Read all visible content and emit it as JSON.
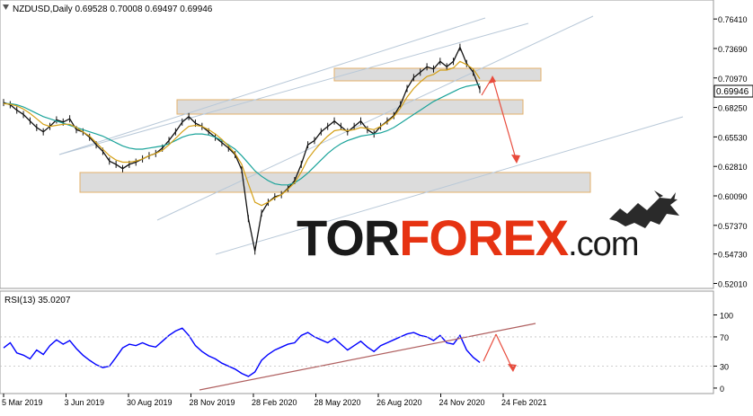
{
  "header": {
    "symbol_line": "NZDUSD,Daily  0.69528 0.70008 0.69497 0.69946",
    "rsi_line": "RSI(13) 35.0207",
    "current_price": "0.69946"
  },
  "logo": {
    "part1": "TOR",
    "part2": "FOREX",
    "part3": ".com",
    "colors": {
      "tor": "#1a1a1a",
      "forex": "#e63312",
      "com": "#1a1a1a"
    }
  },
  "colors": {
    "price": "#111111",
    "ma_slow": "#1aa39a",
    "ma_fast": "#d4a017",
    "channel": "#b8c8d8",
    "zone_fill": "#d9d9d9",
    "zone_border": "#e0a85a",
    "forecast": "#e84c3d",
    "rsi": "#0000ff",
    "rsi_trend": "#b06060",
    "price_tag_bg": "#ffffff"
  },
  "chart_data": [
    {
      "type": "line",
      "title": "NZDUSD,Daily",
      "y_ticks": [
        0.7641,
        0.7369,
        0.7097,
        0.6825,
        0.6553,
        0.6281,
        0.6009,
        0.5737,
        0.5473,
        0.5201
      ],
      "y_tick_labels": [
        "0.76410",
        "0.73690",
        "0.70970",
        "0.68250",
        "0.65530",
        "0.62810",
        "0.60090",
        "0.57370",
        "0.54730",
        "0.52010"
      ],
      "ylim": [
        0.518,
        0.775
      ],
      "x_labels": [
        "5 Mar 2019",
        "3 Jun 2019",
        "30 Aug 2019",
        "28 Nov 2019",
        "28 Feb 2020",
        "28 May 2020",
        "26 Aug 2020",
        "24 Nov 2020",
        "24 Feb 2021"
      ],
      "series": [
        {
          "values": [
            0.687,
            0.685,
            0.68,
            0.676,
            0.67,
            0.664,
            0.66,
            0.665,
            0.671,
            0.669,
            0.672,
            0.662,
            0.66,
            0.655,
            0.648,
            0.642,
            0.633,
            0.63,
            0.626,
            0.63,
            0.632,
            0.635,
            0.638,
            0.64,
            0.645,
            0.652,
            0.66,
            0.669,
            0.674,
            0.668,
            0.665,
            0.66,
            0.655,
            0.65,
            0.645,
            0.639,
            0.625,
            0.58,
            0.55,
            0.585,
            0.595,
            0.6,
            0.602,
            0.608,
            0.615,
            0.63,
            0.648,
            0.652,
            0.66,
            0.665,
            0.67,
            0.665,
            0.66,
            0.665,
            0.67,
            0.662,
            0.658,
            0.665,
            0.67,
            0.675,
            0.685,
            0.7,
            0.71,
            0.715,
            0.72,
            0.718,
            0.725,
            0.72,
            0.725,
            0.738,
            0.723,
            0.715,
            0.699
          ]
        },
        {
          "values": [
            0.686,
            0.686,
            0.685,
            0.683,
            0.68,
            0.677,
            0.674,
            0.672,
            0.67,
            0.668,
            0.666,
            0.664,
            0.662,
            0.66,
            0.658,
            0.656,
            0.653,
            0.65,
            0.647,
            0.645,
            0.644,
            0.644,
            0.645,
            0.646,
            0.647,
            0.649,
            0.652,
            0.655,
            0.657,
            0.658,
            0.658,
            0.657,
            0.655,
            0.652,
            0.648,
            0.644,
            0.638,
            0.631,
            0.624,
            0.619,
            0.615,
            0.612,
            0.611,
            0.611,
            0.613,
            0.617,
            0.622,
            0.628,
            0.634,
            0.64,
            0.645,
            0.649,
            0.652,
            0.654,
            0.656,
            0.657,
            0.658,
            0.659,
            0.661,
            0.664,
            0.668,
            0.672,
            0.676,
            0.68,
            0.684,
            0.688,
            0.691,
            0.694,
            0.697,
            0.7,
            0.702,
            0.703,
            0.704
          ]
        },
        {
          "values": [
            0.686,
            0.6855,
            0.684,
            0.681,
            0.677,
            0.672,
            0.667,
            0.665,
            0.666,
            0.667,
            0.667,
            0.664,
            0.66,
            0.656,
            0.65,
            0.644,
            0.638,
            0.634,
            0.632,
            0.632,
            0.633,
            0.635,
            0.638,
            0.64,
            0.643,
            0.648,
            0.654,
            0.66,
            0.665,
            0.666,
            0.665,
            0.662,
            0.658,
            0.653,
            0.647,
            0.64,
            0.63,
            0.612,
            0.595,
            0.592,
            0.595,
            0.599,
            0.602,
            0.607,
            0.613,
            0.623,
            0.635,
            0.643,
            0.65,
            0.656,
            0.661,
            0.662,
            0.661,
            0.662,
            0.664,
            0.663,
            0.662,
            0.665,
            0.669,
            0.674,
            0.682,
            0.692,
            0.7,
            0.706,
            0.711,
            0.713,
            0.717,
            0.717,
            0.719,
            0.725,
            0.722,
            0.718,
            0.709
          ]
        },
        {
          "values": [
            0.547,
            0.7641
          ]
        },
        {
          "values": [
            0.573,
            0.688
          ]
        }
      ]
    },
    {
      "type": "line",
      "title": "RSI(13) 35.0207",
      "y_ticks": [
        100,
        70,
        30,
        0
      ],
      "y_tick_labels": [
        "100",
        "70",
        "30",
        "0"
      ],
      "ylim": [
        -5,
        108
      ],
      "series": [
        {
          "values": [
            55,
            62,
            48,
            45,
            40,
            52,
            46,
            58,
            66,
            60,
            65,
            54,
            45,
            38,
            32,
            28,
            30,
            42,
            55,
            60,
            58,
            62,
            58,
            56,
            64,
            72,
            78,
            82,
            72,
            58,
            50,
            44,
            40,
            34,
            30,
            26,
            20,
            16,
            22,
            38,
            46,
            52,
            56,
            60,
            62,
            72,
            76,
            70,
            66,
            62,
            68,
            60,
            52,
            58,
            64,
            56,
            50,
            58,
            62,
            66,
            70,
            74,
            76,
            72,
            70,
            65,
            72,
            62,
            60,
            72,
            52,
            42,
            35
          ]
        },
        {
          "values": [
            0,
            70
          ]
        }
      ]
    }
  ]
}
